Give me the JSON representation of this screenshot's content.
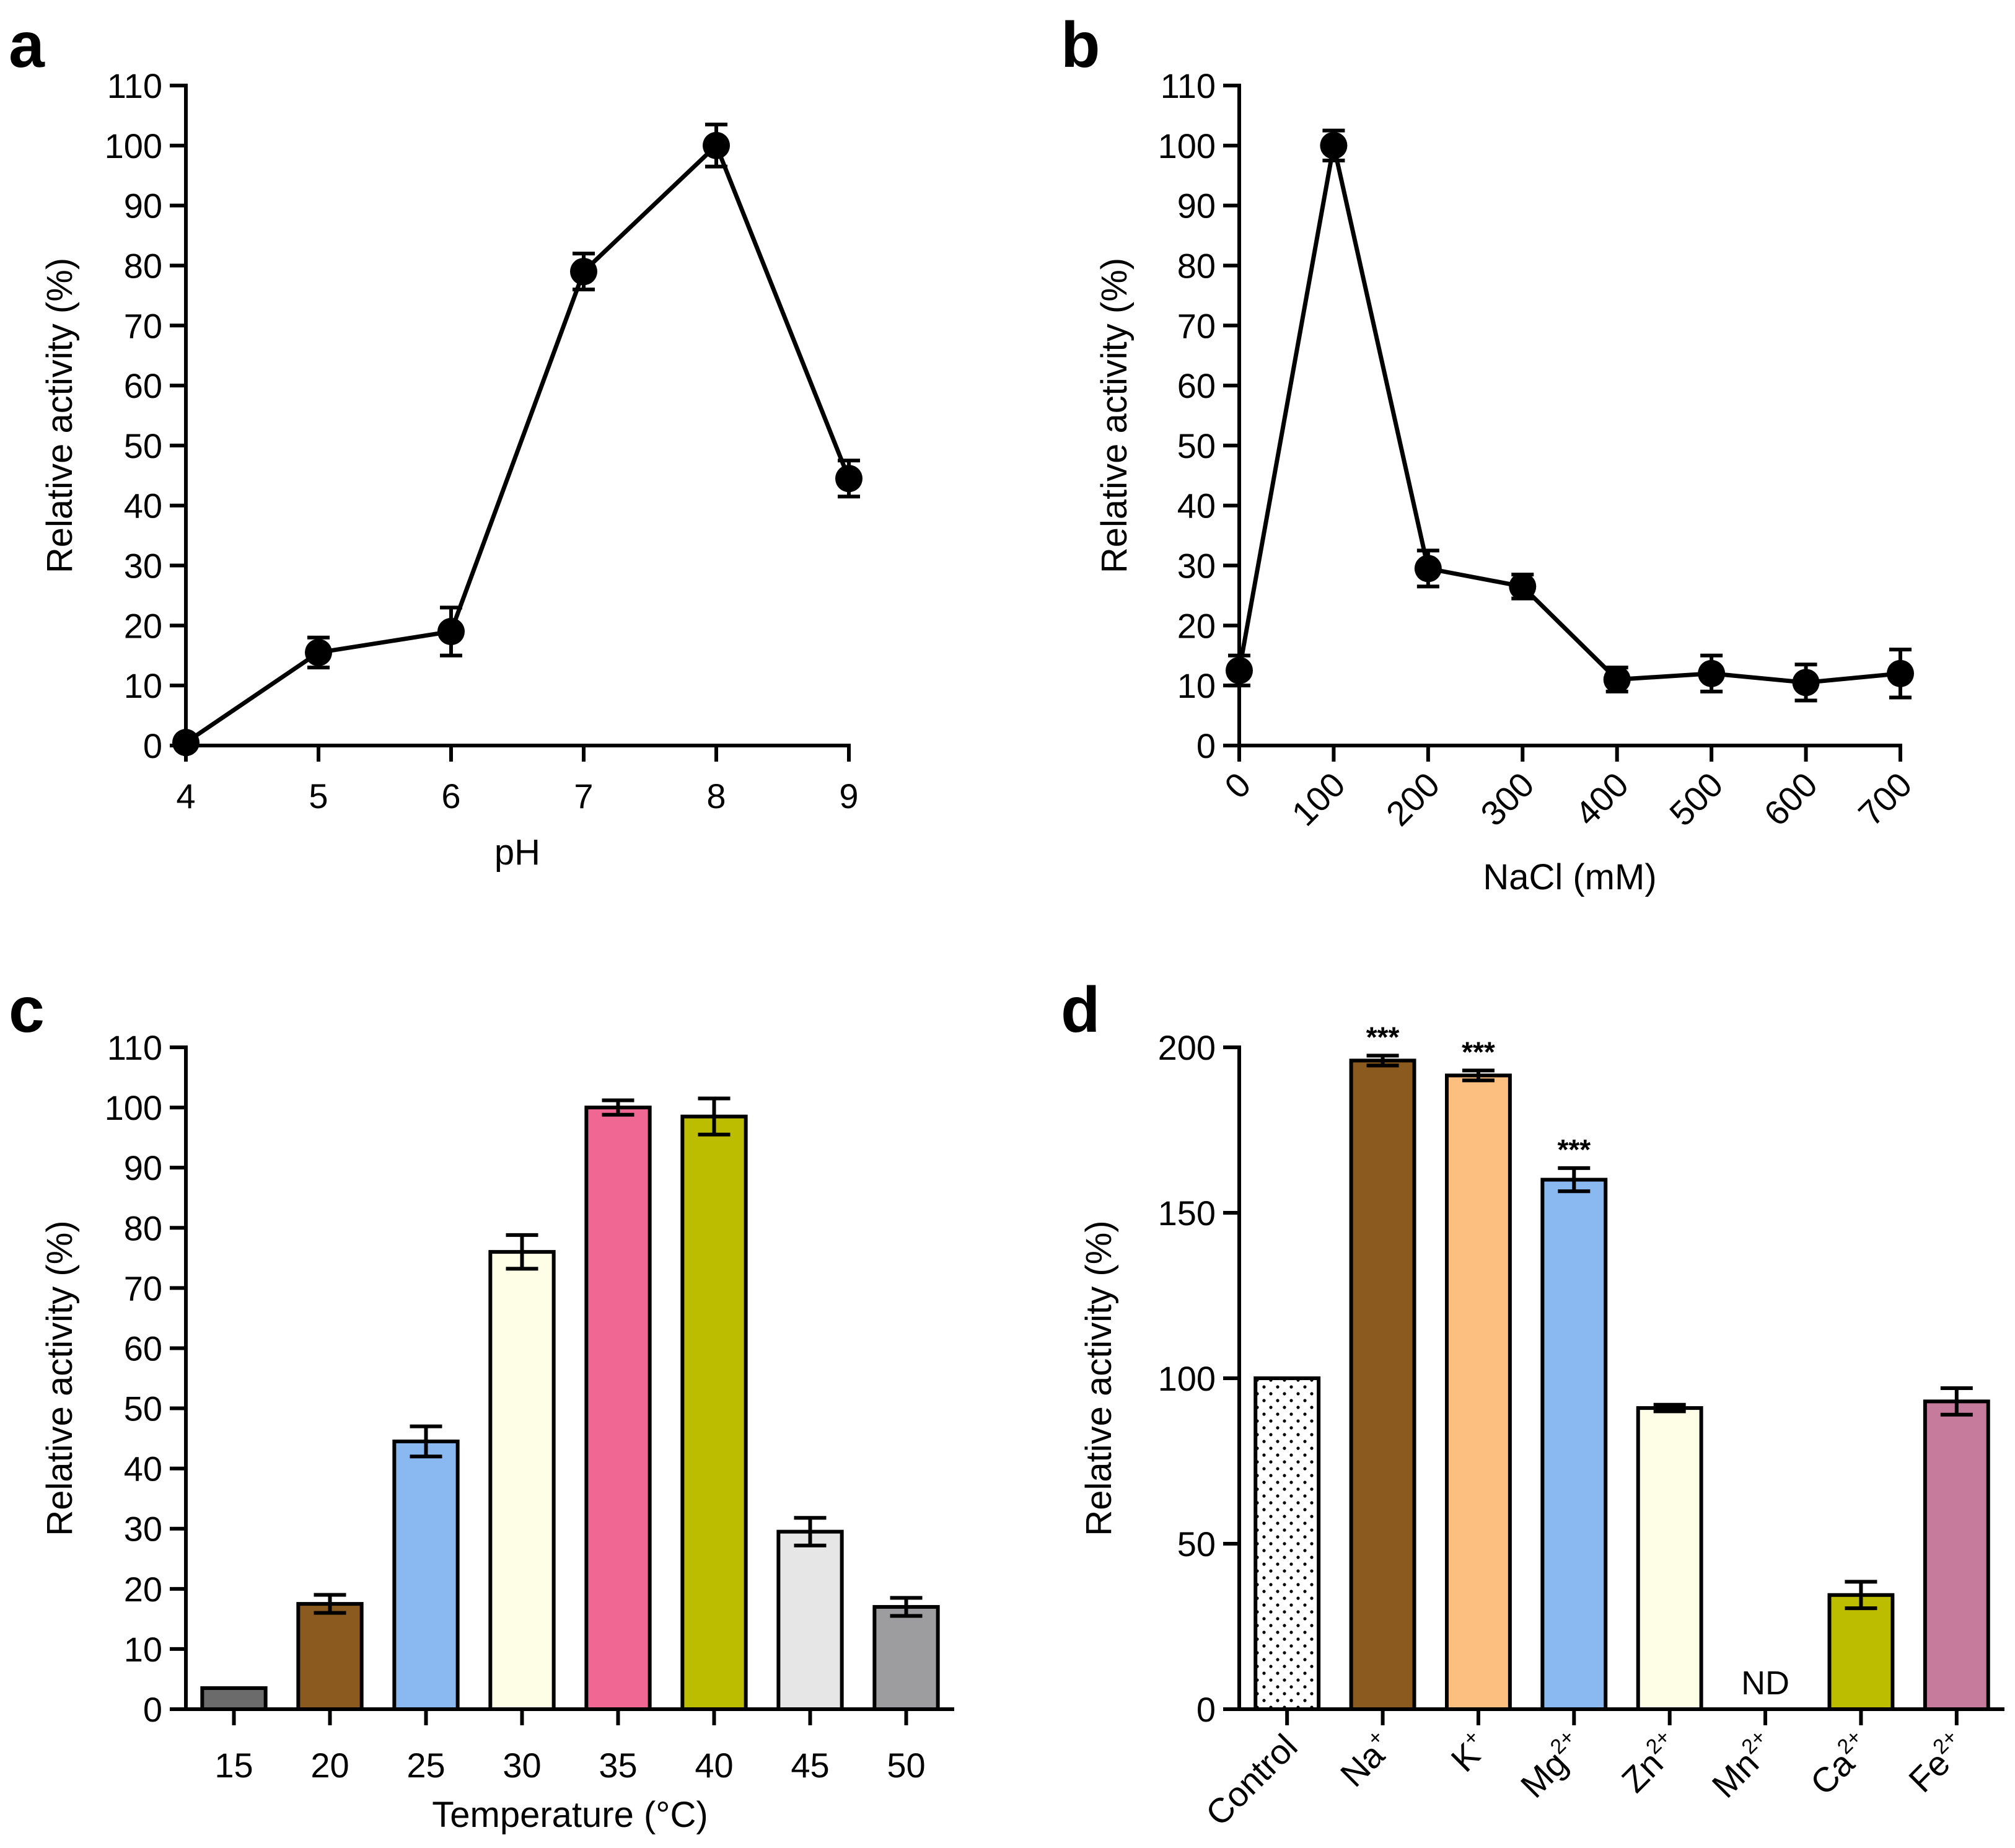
{
  "chart_data": [
    {
      "panel": "a",
      "type": "line",
      "xlabel": "pH",
      "ylabel": "Relative activity (%)",
      "xlim": [
        4,
        9
      ],
      "ylim": [
        0,
        110
      ],
      "x_ticks": [
        "4",
        "5",
        "6",
        "7",
        "8",
        "9"
      ],
      "y_ticks": [
        "0",
        "10",
        "20",
        "30",
        "40",
        "50",
        "60",
        "70",
        "80",
        "90",
        "100",
        "110"
      ],
      "x": [
        4,
        5,
        6,
        7,
        8,
        9
      ],
      "values": [
        0.5,
        15.5,
        19,
        79,
        100,
        44.5
      ],
      "errors": [
        0.5,
        2.5,
        4,
        3,
        3.5,
        3
      ]
    },
    {
      "panel": "b",
      "type": "line",
      "xlabel": "NaCl (mM)",
      "ylabel": "Relative activity (%)",
      "xlim": [
        0,
        700
      ],
      "ylim": [
        0,
        110
      ],
      "x_ticks": [
        "0",
        "100",
        "200",
        "300",
        "400",
        "500",
        "600",
        "700"
      ],
      "y_ticks": [
        "0",
        "10",
        "20",
        "30",
        "40",
        "50",
        "60",
        "70",
        "80",
        "90",
        "100",
        "110"
      ],
      "x": [
        0,
        100,
        200,
        300,
        400,
        500,
        600,
        700
      ],
      "values": [
        12.5,
        100,
        29.5,
        26.5,
        11,
        12,
        10.5,
        12
      ],
      "errors": [
        2.5,
        2.5,
        3,
        2,
        2,
        3,
        3,
        4
      ]
    },
    {
      "panel": "c",
      "type": "bar",
      "xlabel": "Temperature (°C)",
      "ylabel": "Relative activity (%)",
      "ylim": [
        0,
        110
      ],
      "categories": [
        "15",
        "20",
        "25",
        "30",
        "35",
        "40",
        "45",
        "50"
      ],
      "y_ticks": [
        "0",
        "10",
        "20",
        "30",
        "40",
        "50",
        "60",
        "70",
        "80",
        "90",
        "100",
        "110"
      ],
      "values": [
        3.5,
        17.5,
        44.5,
        76,
        100,
        98.5,
        29.5,
        17
      ],
      "errors": [
        0,
        1.5,
        2.5,
        2.8,
        1.2,
        3,
        2.3,
        1.5
      ],
      "colors": [
        "#6b6b6b",
        "#8b5a1e",
        "#8ab8f0",
        "#fefde6",
        "#f06794",
        "#bcbc00",
        "#e6e6e6",
        "#9d9d9f"
      ]
    },
    {
      "panel": "d",
      "type": "bar",
      "xlabel": "",
      "ylabel": "Relative activity (%)",
      "ylim": [
        0,
        200
      ],
      "categories": [
        {
          "base": "Control",
          "sup": ""
        },
        {
          "base": "Na",
          "sup": "+"
        },
        {
          "base": "K",
          "sup": "+"
        },
        {
          "base": "Mg",
          "sup": "2+"
        },
        {
          "base": "Zn",
          "sup": "2+"
        },
        {
          "base": "Mn",
          "sup": "2+"
        },
        {
          "base": "Ca",
          "sup": "2+"
        },
        {
          "base": "Fe",
          "sup": "2+"
        }
      ],
      "y_ticks": [
        "0",
        "50",
        "100",
        "150",
        "200"
      ],
      "values": [
        100,
        196,
        191.5,
        160,
        91,
        0,
        34.5,
        93
      ],
      "errors": [
        0,
        1.5,
        1.5,
        3.5,
        1,
        0,
        4,
        4
      ],
      "colors": [
        "#ffffff",
        "#8b5a1e",
        "#fcbf80",
        "#8ab8f0",
        "#fefde6",
        "#ffffff",
        "#bcbc00",
        "#c67a9c"
      ],
      "patterns": [
        "dots",
        "",
        "",
        "",
        "",
        "",
        "",
        ""
      ],
      "annotations": [
        "",
        "***",
        "***",
        "***",
        "",
        "",
        "",
        ""
      ],
      "not_detected": [
        "",
        "",
        "",
        "",
        "",
        "ND",
        "",
        ""
      ]
    }
  ],
  "panels": [
    {
      "letter": "a"
    },
    {
      "letter": "b"
    },
    {
      "letter": "c"
    },
    {
      "letter": "d"
    }
  ]
}
